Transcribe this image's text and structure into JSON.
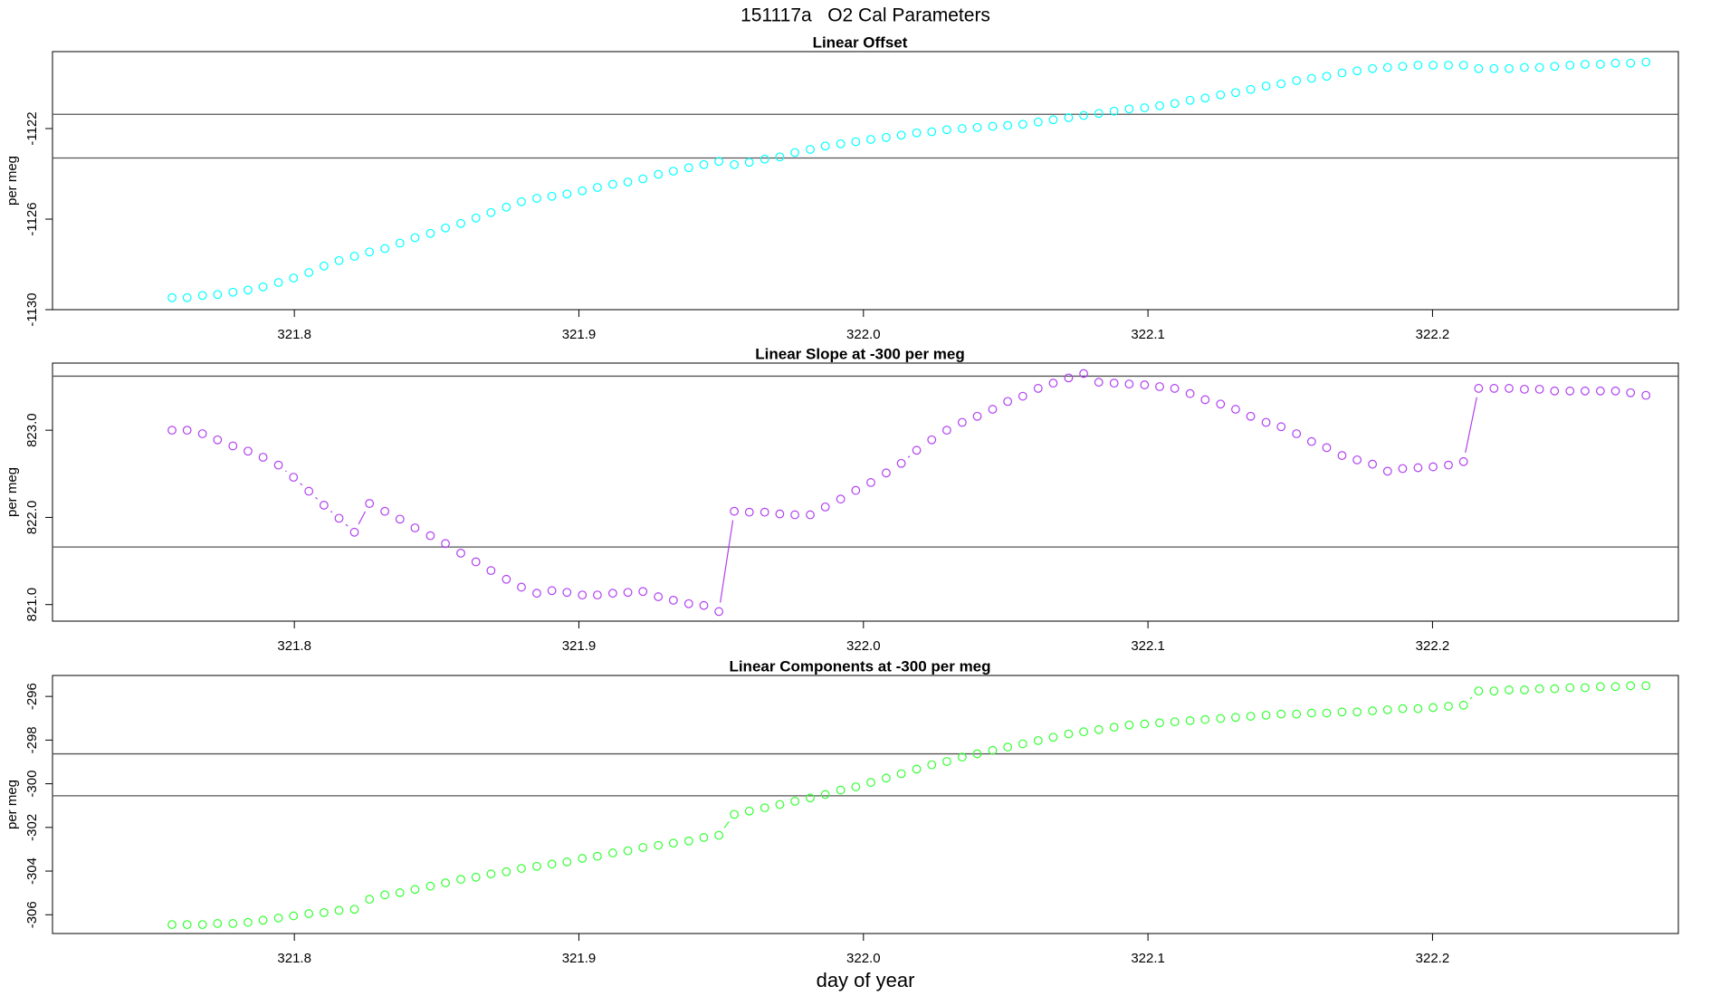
{
  "title": "151117a   O2 Cal Parameters",
  "chart_data": [
    {
      "type": "scatter",
      "title": "Linear Offset",
      "ylabel": "per meg",
      "color": "#00ffff",
      "lines": true,
      "xlim": [
        321.715,
        322.2864
      ],
      "xticks": [
        321.8,
        321.9,
        {
          "value": 322,
          "label": "322.0"
        },
        322.1,
        322.2
      ],
      "ylim": [
        -1130.0,
        -1118.6
      ],
      "yticks": [
        -1130,
        -1126,
        -1122
      ],
      "hlines": [
        -1121.37,
        -1123.3
      ],
      "x": [
        321.757,
        321.7623,
        321.7677,
        321.773,
        321.7784,
        321.7837,
        321.789,
        321.7944,
        321.7997,
        321.8051,
        321.8104,
        321.8157,
        321.8211,
        321.8264,
        321.8318,
        321.8371,
        321.8424,
        321.8478,
        321.8531,
        321.8585,
        321.8638,
        321.8691,
        321.8745,
        321.8798,
        321.8852,
        321.8905,
        321.8958,
        321.9012,
        321.9065,
        321.9119,
        321.9172,
        321.9225,
        321.9279,
        321.9332,
        321.9386,
        321.9439,
        321.9492,
        321.9546,
        321.9599,
        321.9653,
        321.9706,
        321.9759,
        321.9813,
        321.9866,
        321.992,
        321.9973,
        322.0026,
        322.008,
        322.0133,
        322.0187,
        322.024,
        322.0293,
        322.0347,
        322.04,
        322.0454,
        322.0507,
        322.056,
        322.0614,
        322.0667,
        322.0721,
        322.0774,
        322.0827,
        322.0881,
        322.0934,
        322.0988,
        322.1041,
        322.1094,
        322.1148,
        322.1201,
        322.1255,
        322.1308,
        322.1361,
        322.1415,
        322.1468,
        322.1522,
        322.1575,
        322.1628,
        322.1682,
        322.1735,
        322.1789,
        322.1842,
        322.1895,
        322.1949,
        322.2002,
        322.2056,
        322.2109,
        322.2162,
        322.2216,
        322.2269,
        322.2323,
        322.2376,
        322.2429,
        322.2483,
        322.2536,
        322.259,
        322.2643,
        322.2696,
        322.275
      ],
      "values": [
        -1129.47,
        -1129.47,
        -1129.37,
        -1129.33,
        -1129.23,
        -1129.13,
        -1128.99,
        -1128.8,
        -1128.6,
        -1128.36,
        -1128.07,
        -1127.83,
        -1127.64,
        -1127.45,
        -1127.3,
        -1127.06,
        -1126.82,
        -1126.63,
        -1126.39,
        -1126.19,
        -1125.95,
        -1125.71,
        -1125.47,
        -1125.23,
        -1125.08,
        -1124.99,
        -1124.89,
        -1124.75,
        -1124.6,
        -1124.46,
        -1124.36,
        -1124.22,
        -1124.02,
        -1123.88,
        -1123.73,
        -1123.59,
        -1123.45,
        -1123.59,
        -1123.49,
        -1123.35,
        -1123.25,
        -1123.06,
        -1122.92,
        -1122.77,
        -1122.67,
        -1122.58,
        -1122.48,
        -1122.39,
        -1122.29,
        -1122.19,
        -1122.14,
        -1122.05,
        -1122.0,
        -1121.95,
        -1121.9,
        -1121.86,
        -1121.81,
        -1121.71,
        -1121.61,
        -1121.52,
        -1121.42,
        -1121.33,
        -1121.23,
        -1121.13,
        -1121.08,
        -1120.99,
        -1120.89,
        -1120.75,
        -1120.65,
        -1120.51,
        -1120.41,
        -1120.27,
        -1120.12,
        -1120.02,
        -1119.88,
        -1119.78,
        -1119.69,
        -1119.54,
        -1119.45,
        -1119.35,
        -1119.3,
        -1119.25,
        -1119.2,
        -1119.2,
        -1119.2,
        -1119.2,
        -1119.35,
        -1119.35,
        -1119.35,
        -1119.3,
        -1119.3,
        -1119.25,
        -1119.2,
        -1119.16,
        -1119.16,
        -1119.11,
        -1119.11,
        -1119.06
      ]
    },
    {
      "type": "scatter",
      "title": "Linear Slope at -300 per meg",
      "ylabel": "per meg",
      "color": "#b040f0",
      "lines": true,
      "xlim": [
        321.715,
        322.2864
      ],
      "xticks": [
        321.8,
        321.9,
        {
          "value": 322,
          "label": "322.0"
        },
        322.1,
        322.2
      ],
      "ylim": [
        820.81,
        823.77
      ],
      "yticks": [
        {
          "value": 821,
          "label": "821.0"
        },
        {
          "value": 822,
          "label": "822.0"
        },
        {
          "value": 823,
          "label": "823.0"
        }
      ],
      "hlines": [
        823.62,
        821.66
      ],
      "x": [
        321.757,
        321.7623,
        321.7677,
        321.773,
        321.7784,
        321.7837,
        321.789,
        321.7944,
        321.7997,
        321.8051,
        321.8104,
        321.8157,
        321.8211,
        321.8264,
        321.8318,
        321.8371,
        321.8424,
        321.8478,
        321.8531,
        321.8585,
        321.8638,
        321.8691,
        321.8745,
        321.8798,
        321.8852,
        321.8905,
        321.8958,
        321.9012,
        321.9065,
        321.9119,
        321.9172,
        321.9225,
        321.9279,
        321.9332,
        321.9386,
        321.9439,
        321.9492,
        321.9546,
        321.9599,
        321.9653,
        321.9706,
        321.9759,
        321.9813,
        321.9866,
        321.992,
        321.9973,
        322.0026,
        322.008,
        322.0133,
        322.0187,
        322.024,
        322.0293,
        322.0347,
        322.04,
        322.0454,
        322.0507,
        322.056,
        322.0614,
        322.0667,
        322.0721,
        322.0774,
        322.0827,
        322.0881,
        322.0934,
        322.0988,
        322.1041,
        322.1094,
        322.1148,
        322.1201,
        322.1255,
        322.1308,
        322.1361,
        322.1415,
        322.1468,
        322.1522,
        322.1575,
        322.1628,
        322.1682,
        322.1735,
        322.1789,
        322.1842,
        322.1895,
        322.1949,
        322.2002,
        322.2056,
        322.2109,
        322.2162,
        322.2216,
        322.2269,
        322.2323,
        322.2376,
        322.2429,
        322.2483,
        322.2536,
        322.259,
        322.2643,
        322.2696,
        322.275
      ],
      "values": [
        823.0,
        823.0,
        822.96,
        822.89,
        822.82,
        822.76,
        822.69,
        822.6,
        822.46,
        822.3,
        822.14,
        821.99,
        821.83,
        822.16,
        822.07,
        821.98,
        821.88,
        821.79,
        821.7,
        821.59,
        821.49,
        821.39,
        821.29,
        821.2,
        821.13,
        821.16,
        821.14,
        821.11,
        821.11,
        821.13,
        821.14,
        821.15,
        821.09,
        821.05,
        821.01,
        820.99,
        820.92,
        822.07,
        822.06,
        822.06,
        822.04,
        822.03,
        822.03,
        822.12,
        822.21,
        822.31,
        822.4,
        822.51,
        822.62,
        822.77,
        822.89,
        823.0,
        823.09,
        823.16,
        823.24,
        823.33,
        823.39,
        823.48,
        823.54,
        823.6,
        823.65,
        823.55,
        823.54,
        823.53,
        823.52,
        823.5,
        823.48,
        823.42,
        823.35,
        823.3,
        823.24,
        823.16,
        823.09,
        823.04,
        822.96,
        822.87,
        822.8,
        822.71,
        822.66,
        822.61,
        822.53,
        822.56,
        822.57,
        822.58,
        822.6,
        822.64,
        823.48,
        823.48,
        823.48,
        823.47,
        823.47,
        823.45,
        823.45,
        823.45,
        823.45,
        823.45,
        823.43,
        823.4
      ]
    },
    {
      "type": "scatter",
      "title": "Linear Components at -300 per meg",
      "ylabel": "per meg",
      "xlabel": "day of year",
      "color": "#33ff33",
      "lines": true,
      "xlim": [
        321.715,
        322.2864
      ],
      "xticks": [
        321.8,
        321.9,
        {
          "value": 322,
          "label": "322.0"
        },
        322.1,
        322.2
      ],
      "ylim": [
        -306.86,
        -295.04
      ],
      "yticks": [
        -306,
        -304,
        -302,
        -300,
        -298,
        -296
      ],
      "hlines": [
        -298.63,
        -300.55
      ],
      "x": [
        321.757,
        321.7623,
        321.7677,
        321.773,
        321.7784,
        321.7837,
        321.789,
        321.7944,
        321.7997,
        321.8051,
        321.8104,
        321.8157,
        321.8211,
        321.8264,
        321.8318,
        321.8371,
        321.8424,
        321.8478,
        321.8531,
        321.8585,
        321.8638,
        321.8691,
        321.8745,
        321.8798,
        321.8852,
        321.8905,
        321.8958,
        321.9012,
        321.9065,
        321.9119,
        321.9172,
        321.9225,
        321.9279,
        321.9332,
        321.9386,
        321.9439,
        321.9492,
        321.9546,
        321.9599,
        321.9653,
        321.9706,
        321.9759,
        321.9813,
        321.9866,
        321.992,
        321.9973,
        322.0026,
        322.008,
        322.0133,
        322.0187,
        322.024,
        322.0293,
        322.0347,
        322.04,
        322.0454,
        322.0507,
        322.056,
        322.0614,
        322.0667,
        322.0721,
        322.0774,
        322.0827,
        322.0881,
        322.0934,
        322.0988,
        322.1041,
        322.1094,
        322.1148,
        322.1201,
        322.1255,
        322.1308,
        322.1361,
        322.1415,
        322.1468,
        322.1522,
        322.1575,
        322.1628,
        322.1682,
        322.1735,
        322.1789,
        322.1842,
        322.1895,
        322.1949,
        322.2002,
        322.2056,
        322.2109,
        322.2162,
        322.2216,
        322.2269,
        322.2323,
        322.2376,
        322.2429,
        322.2483,
        322.2536,
        322.259,
        322.2643,
        322.2696,
        322.275
      ],
      "values": [
        -306.45,
        -306.45,
        -306.45,
        -306.4,
        -306.4,
        -306.35,
        -306.25,
        -306.15,
        -306.05,
        -305.95,
        -305.9,
        -305.8,
        -305.75,
        -305.29,
        -305.09,
        -304.99,
        -304.84,
        -304.69,
        -304.54,
        -304.38,
        -304.28,
        -304.13,
        -304.03,
        -303.88,
        -303.78,
        -303.68,
        -303.58,
        -303.42,
        -303.32,
        -303.17,
        -303.07,
        -302.92,
        -302.82,
        -302.72,
        -302.62,
        -302.46,
        -302.36,
        -301.4,
        -301.25,
        -301.1,
        -300.95,
        -300.8,
        -300.65,
        -300.49,
        -300.29,
        -300.14,
        -299.94,
        -299.74,
        -299.54,
        -299.33,
        -299.13,
        -298.98,
        -298.78,
        -298.63,
        -298.47,
        -298.32,
        -298.17,
        -298.02,
        -297.87,
        -297.72,
        -297.62,
        -297.52,
        -297.41,
        -297.31,
        -297.26,
        -297.21,
        -297.16,
        -297.11,
        -297.06,
        -297.01,
        -296.96,
        -296.91,
        -296.86,
        -296.81,
        -296.81,
        -296.76,
        -296.76,
        -296.71,
        -296.71,
        -296.66,
        -296.61,
        -296.56,
        -296.56,
        -296.51,
        -296.45,
        -296.4,
        -295.75,
        -295.75,
        -295.7,
        -295.7,
        -295.65,
        -295.65,
        -295.6,
        -295.6,
        -295.55,
        -295.55,
        -295.51,
        -295.51
      ]
    }
  ]
}
